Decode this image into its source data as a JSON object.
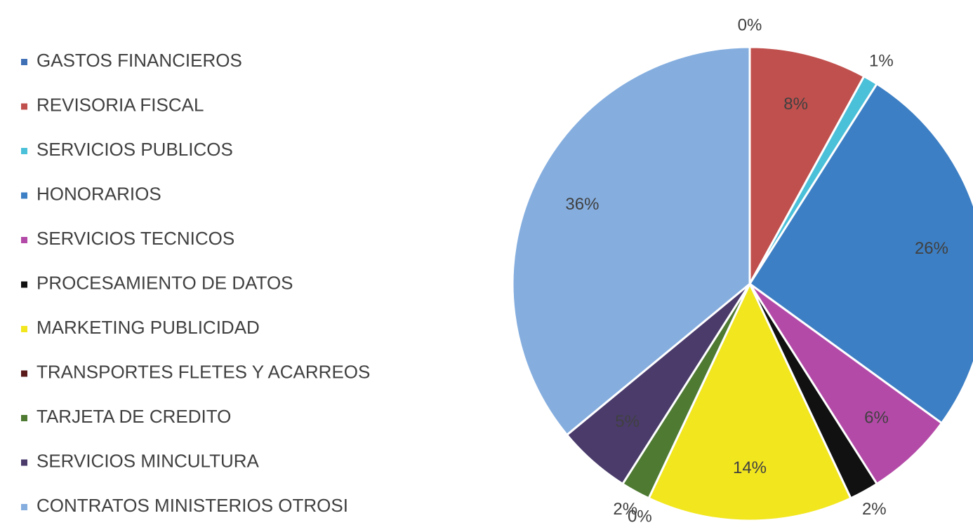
{
  "chart_data": {
    "type": "pie",
    "categories": [
      "GASTOS FINANCIEROS",
      "REVISORIA FISCAL",
      "SERVICIOS PUBLICOS",
      "HONORARIOS",
      "SERVICIOS TECNICOS",
      "PROCESAMIENTO DE DATOS",
      "MARKETING PUBLICIDAD",
      "TRANSPORTES FLETES Y ACARREOS",
      "TARJETA DE CREDITO",
      "SERVICIOS MINCULTURA",
      "CONTRATOS MINISTERIOS OTROSI"
    ],
    "values": [
      0,
      8,
      1,
      26,
      6,
      2,
      14,
      0,
      2,
      5,
      36
    ],
    "value_labels": [
      "0%",
      "8%",
      "1%",
      "26%",
      "6%",
      "2%",
      "14%",
      "0%",
      "2%",
      "5%",
      "36%"
    ],
    "colors": [
      "#3f6fb5",
      "#c0504d",
      "#4bc0d9",
      "#3d7fc4",
      "#b44aa8",
      "#111111",
      "#f2e61f",
      "#5a1a1a",
      "#4e7a32",
      "#4a3b6b",
      "#85aedf"
    ],
    "legend": "left"
  }
}
